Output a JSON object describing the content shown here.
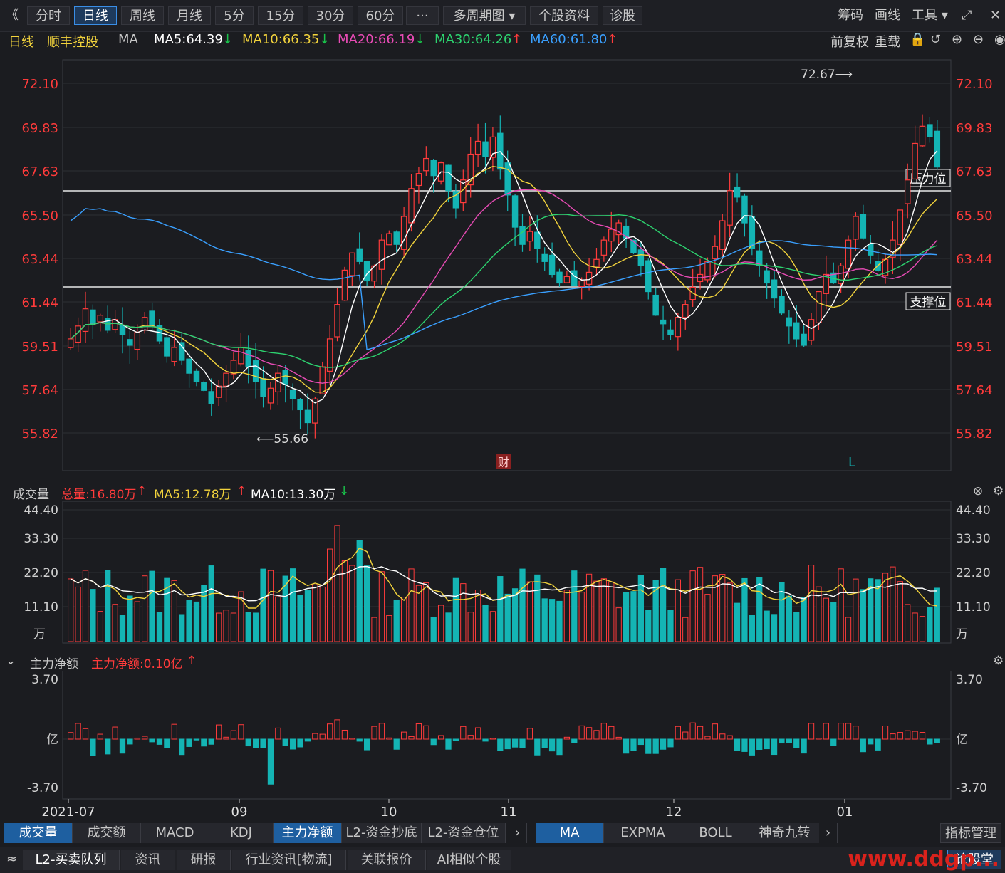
{
  "toolbar": {
    "back": "《",
    "buttons": [
      "分时",
      "日线",
      "周线",
      "月线",
      "5分",
      "15分",
      "30分",
      "60分",
      "···",
      "多周期图 ▾",
      "个股资料",
      "诊股"
    ],
    "active_index": 1,
    "right": [
      "筹码",
      "画线",
      "工具 ▾",
      "⤢",
      "✕"
    ]
  },
  "ma_bar": {
    "period": "日线",
    "stock": "顺丰控股",
    "ma_label": "MA",
    "items": [
      {
        "text": "MA5:64.39",
        "arrow": "↓",
        "color": "#ffffff",
        "arrow_color": "#19c24a"
      },
      {
        "text": "MA10:66.35",
        "arrow": "↓",
        "color": "#f2d33c",
        "arrow_color": "#19c24a"
      },
      {
        "text": "MA20:66.19",
        "arrow": "↓",
        "color": "#e84bb5",
        "arrow_color": "#19c24a"
      },
      {
        "text": "MA30:64.26",
        "arrow": "↑",
        "color": "#2dd36f",
        "arrow_color": "#ff3b3b"
      },
      {
        "text": "MA60:61.80",
        "arrow": "↑",
        "color": "#3aa0ff",
        "arrow_color": "#ff3b3b"
      }
    ],
    "right": [
      "前复权",
      "重载"
    ]
  },
  "price_axis": [
    "72.10",
    "69.83",
    "67.63",
    "65.50",
    "63.44",
    "61.44",
    "59.51",
    "57.64",
    "55.82"
  ],
  "annotations": {
    "high": "72.67⟶",
    "low": "⟵55.66",
    "resist": "压力位",
    "support": "支撑位",
    "fin": "财",
    "L": "L"
  },
  "volume": {
    "label": "成交量",
    "total": "总量:16.80万",
    "ma5": "MA5:12.78万",
    "ma10": "MA10:13.30万",
    "axis": [
      "44.40",
      "33.30",
      "22.20",
      "11.10"
    ],
    "unit": "万"
  },
  "netflow": {
    "label": "主力净额",
    "value": "主力净额:0.10亿",
    "axis": [
      "3.70",
      "-3.70"
    ],
    "unit": "亿"
  },
  "x_axis": [
    "2021-07",
    "09",
    "10",
    "11",
    "12",
    "01"
  ],
  "tabs_left": [
    "成交量",
    "成交额",
    "MACD",
    "KDJ",
    "主力净额",
    "L2-资金抄底",
    "L2-资金仓位"
  ],
  "tabs_mid": [
    "MA",
    "EXPMA",
    "BOLL",
    "神奇九转"
  ],
  "tab_right": "指标管理",
  "bottom_tabs": [
    "L2-买卖队列",
    "资讯",
    "研报",
    "行业资讯[物流]",
    "关联报价",
    "AI相似个股"
  ],
  "bottom_right": "论股堂",
  "watermark": "www.ddgp...",
  "colors": {
    "up": "#ff3b3b",
    "down": "#14b4b4",
    "ma5": "#ffffff",
    "ma10": "#f2d33c",
    "ma20": "#e84bb5",
    "ma30": "#2dd36f",
    "ma60": "#3aa0ff",
    "axis_text": "#ff3b3b"
  }
}
